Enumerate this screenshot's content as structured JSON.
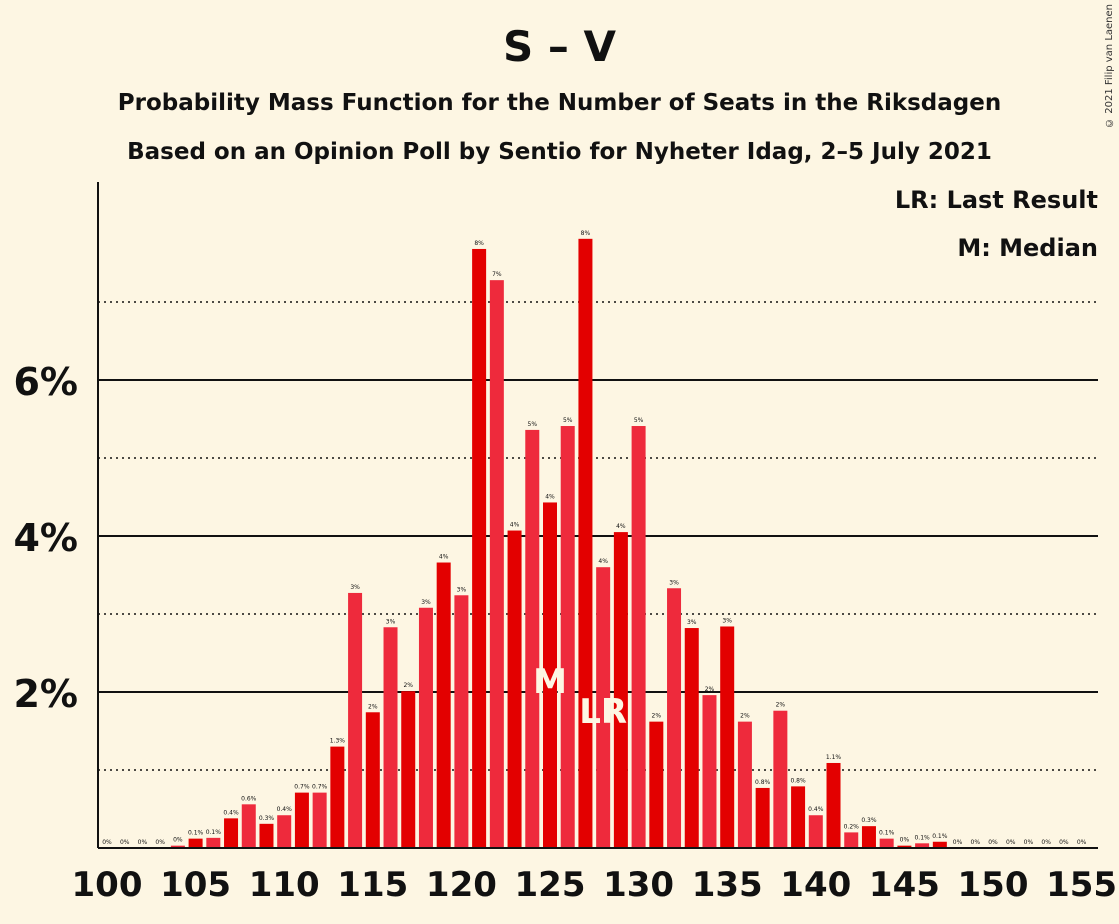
{
  "title": "S – V",
  "subtitle1": "Probability Mass Function for the Number of Seats in the Riksdagen",
  "subtitle2": "Based on an Opinion Poll by Sentio for Nyheter Idag, 2–5 July 2021",
  "copyright": "© 2021 Filip van Laenen",
  "legend": {
    "lr": "LR: Last Result",
    "m": "M: Median"
  },
  "colors": {
    "background": "#fdf6e3",
    "bar_dark": "#e30000",
    "bar_light": "#ee2a3c",
    "marker_text": "#fdf6e3"
  },
  "chart_data": {
    "type": "bar",
    "x": [
      100,
      101,
      102,
      103,
      104,
      105,
      106,
      107,
      108,
      109,
      110,
      111,
      112,
      113,
      114,
      115,
      116,
      117,
      118,
      119,
      120,
      121,
      122,
      123,
      124,
      125,
      126,
      127,
      128,
      129,
      130,
      131,
      132,
      133,
      134,
      135,
      136,
      137,
      138,
      139,
      140,
      141,
      142,
      143,
      144,
      145,
      146,
      147,
      148,
      149,
      150,
      151,
      152,
      153,
      154,
      155
    ],
    "values": [
      0,
      0,
      0,
      0,
      0.03,
      0.12,
      0.13,
      0.38,
      0.56,
      0.31,
      0.42,
      0.71,
      0.71,
      1.3,
      3.27,
      1.74,
      2.83,
      2.01,
      3.08,
      3.66,
      3.24,
      7.68,
      7.28,
      4.07,
      5.36,
      4.43,
      5.41,
      7.81,
      3.6,
      4.05,
      5.41,
      1.62,
      3.33,
      2.82,
      1.96,
      2.84,
      1.62,
      0.77,
      1.76,
      0.79,
      0.42,
      1.09,
      0.2,
      0.28,
      0.12,
      0.03,
      0.06,
      0.08,
      0,
      0,
      0,
      0,
      0,
      0,
      0,
      0
    ],
    "data_labels": [
      "0%",
      "0%",
      "0%",
      "0%",
      "0%",
      "0.1%",
      "0.1%",
      "0.4%",
      "0.6%",
      "0.3%",
      "0.4%",
      "0.7%",
      "0.7%",
      "1.3%",
      "3%",
      "2%",
      "3%",
      "2%",
      "3%",
      "4%",
      "3%",
      "8%",
      "7%",
      "4%",
      "5%",
      "4%",
      "5%",
      "8%",
      "4%",
      "4%",
      "5%",
      "2%",
      "3%",
      "3%",
      "2%",
      "3%",
      "2%",
      "0.8%",
      "2%",
      "0.8%",
      "0.4%",
      "1.1%",
      "0.2%",
      "0.3%",
      "0.1%",
      "0%",
      "0.1%",
      "0.1%",
      "0%",
      "0%",
      "0%",
      "0%",
      "0%",
      "0%",
      "0%",
      "0%"
    ],
    "x_ticks": [
      100,
      105,
      110,
      115,
      120,
      125,
      130,
      135,
      140,
      145,
      150,
      155
    ],
    "x_tick_labels": [
      "100",
      "105",
      "110",
      "115",
      "120",
      "125",
      "130",
      "135",
      "140",
      "145",
      "150",
      "155"
    ],
    "y_ticks": [
      2,
      4,
      6
    ],
    "y_tick_labels": [
      "2%",
      "4%",
      "6%"
    ],
    "y_minor_gridlines": [
      1,
      3,
      5,
      7
    ],
    "ylim": [
      0,
      8.5
    ],
    "median": {
      "x": 125,
      "label": "M"
    },
    "last_result": {
      "x": 128,
      "label": "LR"
    },
    "xlabel": "",
    "ylabel": ""
  }
}
